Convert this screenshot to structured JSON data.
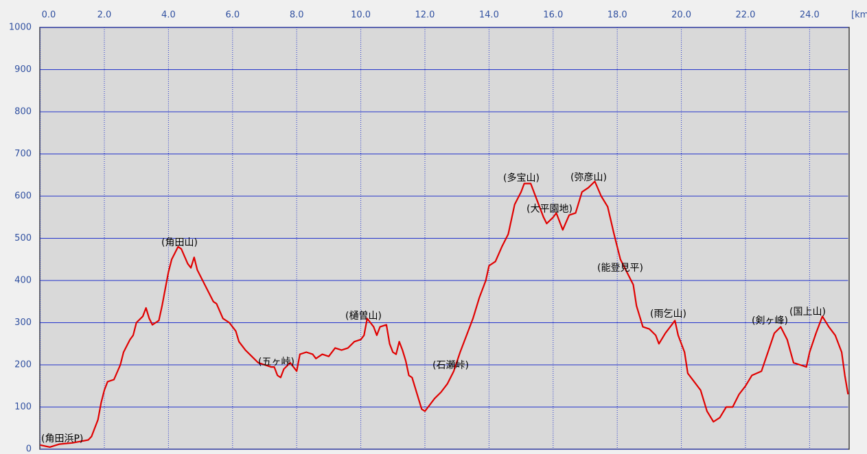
{
  "chart_data": {
    "type": "line",
    "x_unit_label": "[km]",
    "xlim": [
      0,
      25.2
    ],
    "ylim": [
      0,
      1000
    ],
    "grid": true,
    "xticks": [
      {
        "value": 0,
        "label": "0.0"
      },
      {
        "value": 2,
        "label": "2.0"
      },
      {
        "value": 4,
        "label": "4.0"
      },
      {
        "value": 6,
        "label": "6.0"
      },
      {
        "value": 8,
        "label": "8.0"
      },
      {
        "value": 10,
        "label": "10.0"
      },
      {
        "value": 12,
        "label": "12.0"
      },
      {
        "value": 14,
        "label": "14.0"
      },
      {
        "value": 16,
        "label": "16.0"
      },
      {
        "value": 18,
        "label": "18.0"
      },
      {
        "value": 20,
        "label": "20.0"
      },
      {
        "value": 22,
        "label": "22.0"
      },
      {
        "value": 24,
        "label": "24.0"
      }
    ],
    "yticks": [
      0,
      100,
      200,
      300,
      400,
      500,
      600,
      700,
      800,
      900,
      1000
    ],
    "x": [
      0,
      0.3,
      0.6,
      1.0,
      1.5,
      1.6,
      1.8,
      1.9,
      2.0,
      2.1,
      2.3,
      2.5,
      2.6,
      2.8,
      2.9,
      3.0,
      3.2,
      3.3,
      3.4,
      3.5,
      3.6,
      3.7,
      3.8,
      3.9,
      4.0,
      4.1,
      4.3,
      4.4,
      4.6,
      4.7,
      4.8,
      4.9,
      5.0,
      5.2,
      5.4,
      5.5,
      5.7,
      5.9,
      6.1,
      6.2,
      6.4,
      6.6,
      6.8,
      7.0,
      7.2,
      7.3,
      7.4,
      7.5,
      7.6,
      7.8,
      8.0,
      8.1,
      8.3,
      8.5,
      8.6,
      8.8,
      9.0,
      9.2,
      9.4,
      9.6,
      9.8,
      10.0,
      10.1,
      10.2,
      10.3,
      10.4,
      10.5,
      10.6,
      10.8,
      10.9,
      11.0,
      11.1,
      11.2,
      11.3,
      11.4,
      11.5,
      11.6,
      11.8,
      11.9,
      12.0,
      12.1,
      12.3,
      12.5,
      12.7,
      12.9,
      13.1,
      13.3,
      13.5,
      13.7,
      13.9,
      14.0,
      14.2,
      14.4,
      14.6,
      14.8,
      15.0,
      15.1,
      15.3,
      15.5,
      15.7,
      15.8,
      16.0,
      16.1,
      16.3,
      16.5,
      16.7,
      16.9,
      17.1,
      17.3,
      17.5,
      17.7,
      17.9,
      18.1,
      18.3,
      18.5,
      18.6,
      18.8,
      19.0,
      19.2,
      19.3,
      19.5,
      19.7,
      19.8,
      19.9,
      20.1,
      20.2,
      20.4,
      20.6,
      20.8,
      21.0,
      21.2,
      21.4,
      21.6,
      21.8,
      22.0,
      22.2,
      22.5,
      22.7,
      22.9,
      23.1,
      23.3,
      23.5,
      23.7,
      23.9,
      24.0,
      24.2,
      24.4,
      24.6,
      24.8,
      25.0,
      25.1,
      25.2
    ],
    "series": [
      {
        "color": "#e00000",
        "values": [
          10,
          5,
          12,
          15,
          22,
          30,
          70,
          110,
          140,
          160,
          165,
          200,
          230,
          260,
          270,
          300,
          315,
          335,
          310,
          295,
          300,
          305,
          340,
          380,
          420,
          450,
          480,
          475,
          440,
          430,
          455,
          425,
          410,
          380,
          350,
          345,
          310,
          300,
          280,
          255,
          235,
          220,
          205,
          200,
          195,
          195,
          175,
          170,
          190,
          205,
          185,
          225,
          230,
          225,
          215,
          225,
          220,
          240,
          235,
          240,
          255,
          260,
          270,
          310,
          300,
          290,
          270,
          290,
          295,
          250,
          230,
          225,
          255,
          235,
          210,
          175,
          170,
          120,
          95,
          90,
          100,
          120,
          135,
          155,
          185,
          230,
          270,
          310,
          360,
          400,
          435,
          445,
          480,
          510,
          580,
          610,
          630,
          630,
          590,
          550,
          535,
          550,
          560,
          520,
          555,
          560,
          610,
          620,
          635,
          600,
          575,
          510,
          450,
          420,
          390,
          340,
          290,
          285,
          270,
          250,
          275,
          295,
          305,
          270,
          230,
          180,
          160,
          140,
          90,
          65,
          75,
          100,
          100,
          130,
          150,
          175,
          185,
          230,
          275,
          290,
          260,
          205,
          200,
          195,
          230,
          275,
          315,
          290,
          270,
          230,
          175,
          130
        ]
      }
    ],
    "annotations": [
      "(角田浜P)",
      "(角田山)",
      "(五ヶ峠)",
      "(樋曽山)",
      "(石瀬峠)",
      "(多宝山)",
      "(大平園地)",
      "(弥彦山)",
      "(能登見平)",
      "(雨乞山)",
      "(剣ヶ峰)",
      "(国上山)"
    ]
  }
}
